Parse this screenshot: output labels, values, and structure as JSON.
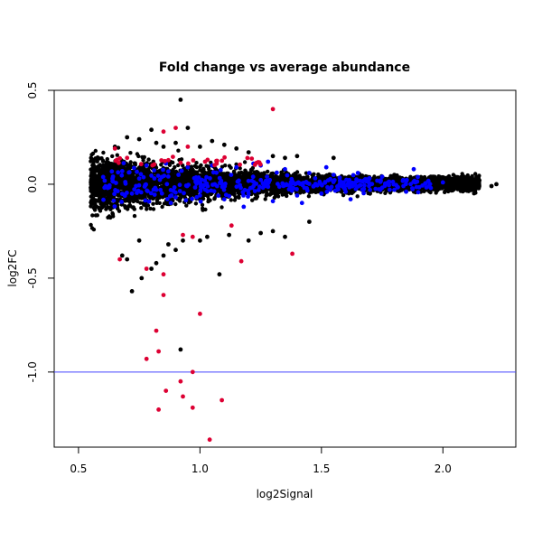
{
  "chart_data": {
    "type": "scatter",
    "title": "Fold change vs average abundance",
    "xlabel": "log2Signal",
    "ylabel": "log2FC",
    "xlim": [
      0.4,
      2.3
    ],
    "ylim": [
      -1.4,
      0.5
    ],
    "x_ticks": [
      0.5,
      1.0,
      1.5,
      2.0
    ],
    "x_tick_labels": [
      "0.5",
      "1.0",
      "1.5",
      "2.0"
    ],
    "y_ticks": [
      -1.0,
      -0.5,
      0.0,
      0.5
    ],
    "y_tick_labels": [
      "-1.0",
      "-0.5",
      "0.0",
      "0.5"
    ],
    "grid": false,
    "reference_line": {
      "y": -1.0,
      "color": "#4444ff"
    },
    "colors": {
      "all": "#000000",
      "highlight_blue": "#0000ff",
      "highlight_red": "#dd0033"
    },
    "series": [
      {
        "color": "#000000",
        "points": [
          [
            0.65,
            0.2
          ],
          [
            0.7,
            0.25
          ],
          [
            0.75,
            0.24
          ],
          [
            0.8,
            0.29
          ],
          [
            0.82,
            0.22
          ],
          [
            0.85,
            0.2
          ],
          [
            0.9,
            0.22
          ],
          [
            0.92,
            0.45
          ],
          [
            0.95,
            0.3
          ],
          [
            1.0,
            0.2
          ],
          [
            1.05,
            0.23
          ],
          [
            1.1,
            0.21
          ],
          [
            1.15,
            0.19
          ],
          [
            1.2,
            0.17
          ],
          [
            1.3,
            0.15
          ],
          [
            1.35,
            0.14
          ],
          [
            1.4,
            0.15
          ],
          [
            1.55,
            0.14
          ],
          [
            0.68,
            -0.38
          ],
          [
            0.7,
            -0.4
          ],
          [
            0.75,
            -0.3
          ],
          [
            0.72,
            -0.57
          ],
          [
            0.76,
            -0.5
          ],
          [
            0.8,
            -0.45
          ],
          [
            0.82,
            -0.42
          ],
          [
            0.85,
            -0.38
          ],
          [
            0.87,
            -0.32
          ],
          [
            0.9,
            -0.35
          ],
          [
            0.93,
            -0.3
          ],
          [
            1.0,
            -0.3
          ],
          [
            1.03,
            -0.28
          ],
          [
            1.08,
            -0.48
          ],
          [
            1.12,
            -0.27
          ],
          [
            1.2,
            -0.3
          ],
          [
            1.25,
            -0.26
          ],
          [
            1.3,
            -0.25
          ],
          [
            1.35,
            -0.28
          ],
          [
            1.45,
            -0.2
          ],
          [
            0.92,
            -0.88
          ],
          [
            0.6,
            -0.1
          ],
          [
            0.62,
            0.1
          ],
          [
            2.1,
            0.03
          ],
          [
            2.2,
            -0.01
          ],
          [
            2.22,
            0.0
          ],
          [
            2.15,
            0.02
          ],
          [
            2.05,
            -0.02
          ],
          [
            1.95,
            0.04
          ],
          [
            1.9,
            -0.04
          ],
          [
            1.8,
            0.05
          ],
          [
            1.7,
            -0.05
          ]
        ]
      },
      {
        "color": "#0000ff",
        "points": [
          [
            0.62,
            -0.02
          ],
          [
            0.68,
            0.07
          ],
          [
            0.72,
            -0.05
          ],
          [
            0.78,
            0.1
          ],
          [
            0.82,
            -0.03
          ],
          [
            0.86,
            0.11
          ],
          [
            0.9,
            -0.07
          ],
          [
            0.95,
            0.09
          ],
          [
            1.0,
            -0.06
          ],
          [
            1.05,
            0.1
          ],
          [
            1.1,
            -0.08
          ],
          [
            1.15,
            0.09
          ],
          [
            1.2,
            -0.05
          ],
          [
            1.25,
            0.1
          ],
          [
            1.3,
            -0.09
          ],
          [
            1.35,
            0.08
          ],
          [
            1.4,
            -0.06
          ],
          [
            1.45,
            0.06
          ],
          [
            1.5,
            -0.05
          ],
          [
            1.55,
            0.05
          ],
          [
            1.6,
            -0.04
          ],
          [
            1.65,
            0.06
          ],
          [
            1.7,
            -0.03
          ],
          [
            1.75,
            0.04
          ],
          [
            1.8,
            -0.03
          ],
          [
            1.85,
            0.02
          ],
          [
            1.88,
            0.08
          ],
          [
            1.95,
            -0.02
          ],
          [
            2.0,
            0.01
          ],
          [
            0.75,
            0.03
          ],
          [
            0.88,
            -0.1
          ],
          [
            1.02,
            0.02
          ],
          [
            1.18,
            -0.12
          ],
          [
            1.28,
            0.12
          ],
          [
            1.42,
            -0.1
          ],
          [
            1.52,
            0.09
          ],
          [
            1.62,
            -0.08
          ]
        ]
      },
      {
        "color": "#dd0033",
        "points": [
          [
            0.65,
            0.19
          ],
          [
            0.7,
            0.14
          ],
          [
            0.85,
            0.28
          ],
          [
            0.9,
            0.3
          ],
          [
            0.95,
            0.2
          ],
          [
            1.3,
            0.4
          ],
          [
            0.67,
            -0.4
          ],
          [
            0.78,
            -0.45
          ],
          [
            0.85,
            -0.48
          ],
          [
            0.85,
            -0.59
          ],
          [
            0.93,
            -0.27
          ],
          [
            0.97,
            -0.28
          ],
          [
            1.0,
            -0.69
          ],
          [
            0.82,
            -0.78
          ],
          [
            0.78,
            -0.93
          ],
          [
            0.83,
            -0.89
          ],
          [
            0.97,
            -1.0
          ],
          [
            0.92,
            -1.05
          ],
          [
            0.86,
            -1.1
          ],
          [
            0.93,
            -1.13
          ],
          [
            1.09,
            -1.15
          ],
          [
            0.97,
            -1.19
          ],
          [
            0.83,
            -1.2
          ],
          [
            1.04,
            -1.36
          ],
          [
            1.17,
            -0.41
          ],
          [
            1.38,
            -0.37
          ],
          [
            1.13,
            -0.22
          ]
        ]
      }
    ]
  }
}
